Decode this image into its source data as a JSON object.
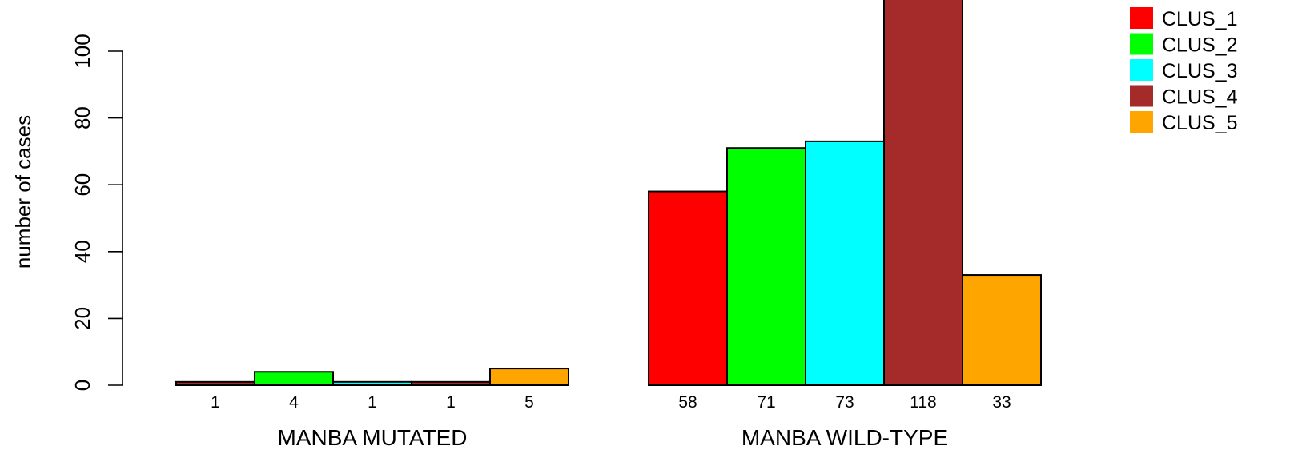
{
  "chart_data": {
    "type": "bar",
    "ylabel": "number of cases",
    "ylim": [
      0,
      120
    ],
    "yticks": [
      0,
      20,
      40,
      60,
      80,
      100
    ],
    "grid": false,
    "legend_position": "top-right",
    "series": [
      {
        "name": "CLUS_1",
        "color": "#ff0000"
      },
      {
        "name": "CLUS_2",
        "color": "#00ff00"
      },
      {
        "name": "CLUS_3",
        "color": "#00ffff"
      },
      {
        "name": "CLUS_4",
        "color": "#a52a2a"
      },
      {
        "name": "CLUS_5",
        "color": "#ffa500"
      }
    ],
    "groups": [
      {
        "label": "MANBA MUTATED",
        "values": [
          1,
          4,
          1,
          1,
          5
        ],
        "value_labels": [
          "1",
          "4",
          "1",
          "1",
          "5"
        ],
        "bar_colors": [
          "#a52a2a",
          "#00ff00",
          "#00ffff",
          "#a52a2a",
          "#ffa500"
        ]
      },
      {
        "label": "MANBA WILD-TYPE",
        "values": [
          58,
          71,
          73,
          118,
          33
        ],
        "value_labels": [
          "58",
          "71",
          "73",
          "118",
          "33"
        ],
        "bar_colors": [
          "#ff0000",
          "#00ff00",
          "#00ffff",
          "#a52a2a",
          "#ffa500"
        ]
      }
    ]
  }
}
